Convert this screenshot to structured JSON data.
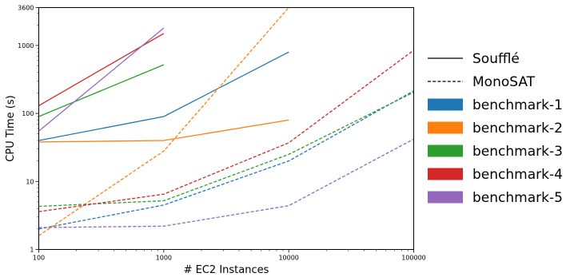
{
  "chart_data": {
    "type": "line",
    "xlabel": "# EC2 Instances",
    "ylabel": "CPU Time (s)",
    "xscale": "log",
    "yscale": "log",
    "xlim": [
      100,
      100000
    ],
    "ylim": [
      1,
      3600
    ],
    "x_ticks": [
      100,
      1000,
      10000,
      100000
    ],
    "x_tick_labels": [
      "100",
      "1000",
      "10000",
      "100000"
    ],
    "y_ticks": [
      1,
      10,
      100,
      1000,
      3600
    ],
    "y_tick_labels": [
      "1",
      "10",
      "100",
      "1000",
      "3600"
    ],
    "grid": false,
    "legend_position": "right, outside plot",
    "legend": {
      "styles": [
        {
          "label": "Soufflé",
          "linestyle": "solid"
        },
        {
          "label": "MonoSAT",
          "linestyle": "dashed"
        }
      ],
      "benchmarks": [
        {
          "label": "benchmark-1",
          "color": "#1f77b4"
        },
        {
          "label": "benchmark-2",
          "color": "#ff7f0e"
        },
        {
          "label": "benchmark-3",
          "color": "#2ca02c"
        },
        {
          "label": "benchmark-4",
          "color": "#d62728"
        },
        {
          "label": "benchmark-5",
          "color": "#9467bd"
        }
      ]
    },
    "series": [
      {
        "benchmark": "benchmark-1",
        "solver": "Soufflé",
        "linestyle": "solid",
        "color": "#1f77b4",
        "x": [
          100,
          1000,
          10000
        ],
        "y": [
          40,
          90,
          800
        ]
      },
      {
        "benchmark": "benchmark-2",
        "solver": "Soufflé",
        "linestyle": "solid",
        "color": "#ff7f0e",
        "x": [
          100,
          1000,
          10000
        ],
        "y": [
          38,
          40,
          80
        ]
      },
      {
        "benchmark": "benchmark-3",
        "solver": "Soufflé",
        "linestyle": "solid",
        "color": "#2ca02c",
        "x": [
          100,
          1000
        ],
        "y": [
          90,
          520
        ]
      },
      {
        "benchmark": "benchmark-4",
        "solver": "Soufflé",
        "linestyle": "solid",
        "color": "#d62728",
        "x": [
          100,
          1000
        ],
        "y": [
          130,
          1500
        ]
      },
      {
        "benchmark": "benchmark-5",
        "solver": "Soufflé",
        "linestyle": "solid",
        "color": "#9467bd",
        "x": [
          100,
          1000
        ],
        "y": [
          55,
          1800
        ]
      },
      {
        "benchmark": "benchmark-1",
        "solver": "MonoSAT",
        "linestyle": "dashed",
        "color": "#1f77b4",
        "x": [
          100,
          1000,
          10000,
          100000
        ],
        "y": [
          2.0,
          4.5,
          20,
          215
        ]
      },
      {
        "benchmark": "benchmark-2",
        "solver": "MonoSAT",
        "linestyle": "dashed",
        "color": "#ff7f0e",
        "x": [
          100,
          1000,
          10000
        ],
        "y": [
          1.6,
          28,
          3600
        ]
      },
      {
        "benchmark": "benchmark-3",
        "solver": "MonoSAT",
        "linestyle": "dashed",
        "color": "#2ca02c",
        "x": [
          100,
          1000,
          10000,
          100000
        ],
        "y": [
          4.3,
          5.2,
          25,
          205
        ]
      },
      {
        "benchmark": "benchmark-4",
        "solver": "MonoSAT",
        "linestyle": "dashed",
        "color": "#d62728",
        "x": [
          100,
          1000,
          10000,
          100000
        ],
        "y": [
          3.6,
          6.5,
          37,
          850
        ]
      },
      {
        "benchmark": "benchmark-5",
        "solver": "MonoSAT",
        "linestyle": "dashed",
        "color": "#9467bd",
        "x": [
          100,
          1000,
          10000,
          100000
        ],
        "y": [
          2.1,
          2.2,
          4.4,
          42
        ]
      }
    ]
  }
}
